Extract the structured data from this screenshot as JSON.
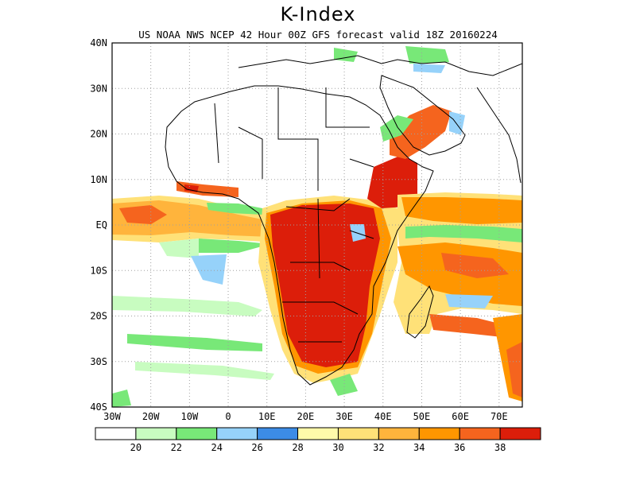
{
  "title": "K-Index",
  "subtitle": "US NOAA NWS NCEP 42 Hour 00Z GFS forecast valid 18Z 20160224",
  "map": {
    "lat_labels": [
      "40N",
      "30N",
      "20N",
      "10N",
      "EQ",
      "10S",
      "20S",
      "30S",
      "40S"
    ],
    "lon_labels": [
      "30W",
      "20W",
      "10W",
      "0",
      "10E",
      "20E",
      "30E",
      "40E",
      "50E",
      "60E",
      "70E"
    ],
    "lon_range": [
      -30,
      76
    ],
    "lat_range": [
      -40,
      40
    ],
    "grid": "dotted"
  },
  "colorbar": {
    "labels": [
      "20",
      "22",
      "24",
      "26",
      "28",
      "30",
      "32",
      "34",
      "36",
      "38"
    ],
    "colors": [
      "#ffffff",
      "#c8fcc0",
      "#78e878",
      "#96d2fa",
      "#3c8ce6",
      "#fffaaa",
      "#ffe178",
      "#ffb43c",
      "#ff9600",
      "#f5641e",
      "#dc1e0a"
    ]
  },
  "colors": {
    "coastline": "#000000",
    "frame": "#000000"
  }
}
